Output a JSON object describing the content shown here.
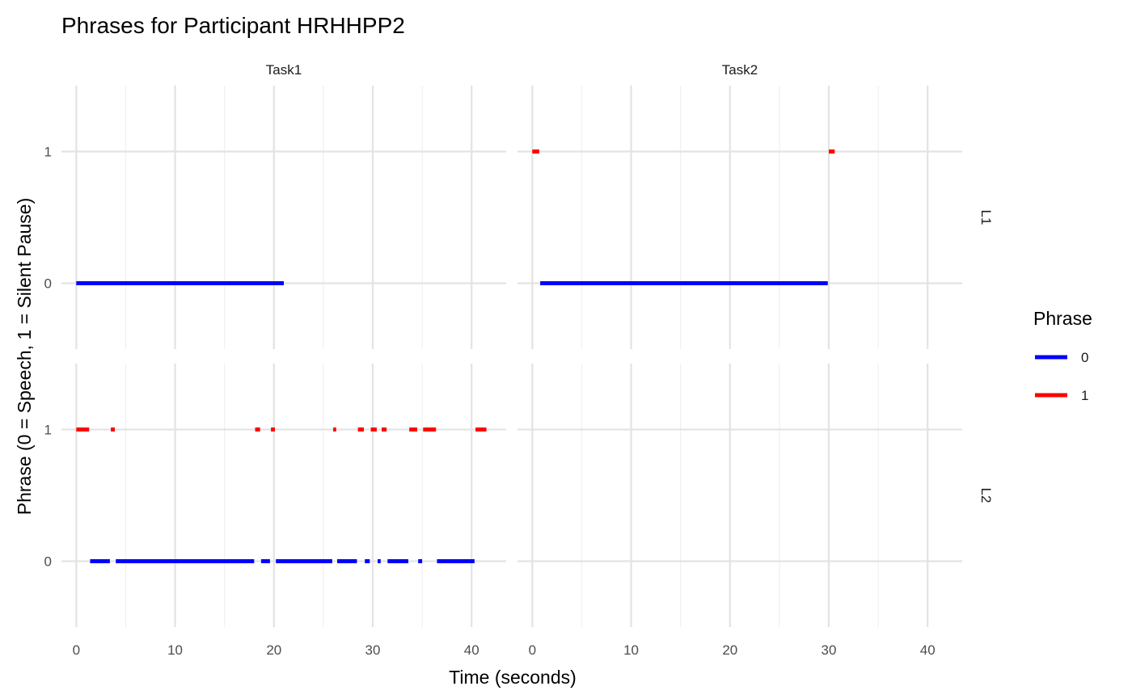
{
  "chart_data": {
    "type": "line",
    "title": "Phrases for Participant HRHHPP2",
    "xlabel": "Time (seconds)",
    "ylabel": "Phrase (0 = Speech, 1 = Silent Pause)",
    "xlim": [
      -1.5,
      43.5
    ],
    "x_ticks": [
      0,
      10,
      20,
      30,
      40
    ],
    "x_minor": [
      5,
      15,
      25,
      35
    ],
    "y_ticks": [
      0,
      1
    ],
    "ylim": [
      -0.5,
      1.5
    ],
    "facet_cols": [
      "Task1",
      "Task2"
    ],
    "facet_rows": [
      "L1",
      "L2"
    ],
    "grid": true,
    "legend": {
      "title": "Phrase",
      "position": "right",
      "entries": [
        {
          "label": "0",
          "color": "#0000ff"
        },
        {
          "label": "1",
          "color": "#ff0000"
        }
      ]
    },
    "panels": [
      {
        "col": "Task1",
        "row": "L1",
        "segments": [
          {
            "phrase": 0,
            "start": 0.0,
            "end": 21.0
          }
        ]
      },
      {
        "col": "Task2",
        "row": "L1",
        "segments": [
          {
            "phrase": 1,
            "start": 0.0,
            "end": 0.7
          },
          {
            "phrase": 0,
            "start": 0.8,
            "end": 29.9
          },
          {
            "phrase": 1,
            "start": 30.0,
            "end": 30.6
          }
        ]
      },
      {
        "col": "Task1",
        "row": "L2",
        "segments": [
          {
            "phrase": 1,
            "start": 0.0,
            "end": 1.3
          },
          {
            "phrase": 0,
            "start": 1.4,
            "end": 3.4
          },
          {
            "phrase": 1,
            "start": 3.5,
            "end": 3.9
          },
          {
            "phrase": 0,
            "start": 4.0,
            "end": 18.0
          },
          {
            "phrase": 1,
            "start": 18.1,
            "end": 18.6
          },
          {
            "phrase": 0,
            "start": 18.7,
            "end": 19.6
          },
          {
            "phrase": 1,
            "start": 19.7,
            "end": 20.1
          },
          {
            "phrase": 0,
            "start": 20.2,
            "end": 25.9
          },
          {
            "phrase": 1,
            "start": 26.0,
            "end": 26.3
          },
          {
            "phrase": 0,
            "start": 26.4,
            "end": 28.4
          },
          {
            "phrase": 1,
            "start": 28.5,
            "end": 29.1
          },
          {
            "phrase": 0,
            "start": 29.2,
            "end": 29.7
          },
          {
            "phrase": 1,
            "start": 29.8,
            "end": 30.4
          },
          {
            "phrase": 0,
            "start": 30.5,
            "end": 30.8
          },
          {
            "phrase": 1,
            "start": 30.9,
            "end": 31.4
          },
          {
            "phrase": 0,
            "start": 31.5,
            "end": 33.6
          },
          {
            "phrase": 1,
            "start": 33.7,
            "end": 34.5
          },
          {
            "phrase": 0,
            "start": 34.6,
            "end": 35.0
          },
          {
            "phrase": 1,
            "start": 35.1,
            "end": 36.4
          },
          {
            "phrase": 0,
            "start": 36.5,
            "end": 40.3
          },
          {
            "phrase": 1,
            "start": 40.4,
            "end": 41.5
          }
        ]
      },
      {
        "col": "Task2",
        "row": "L2",
        "segments": []
      }
    ]
  }
}
